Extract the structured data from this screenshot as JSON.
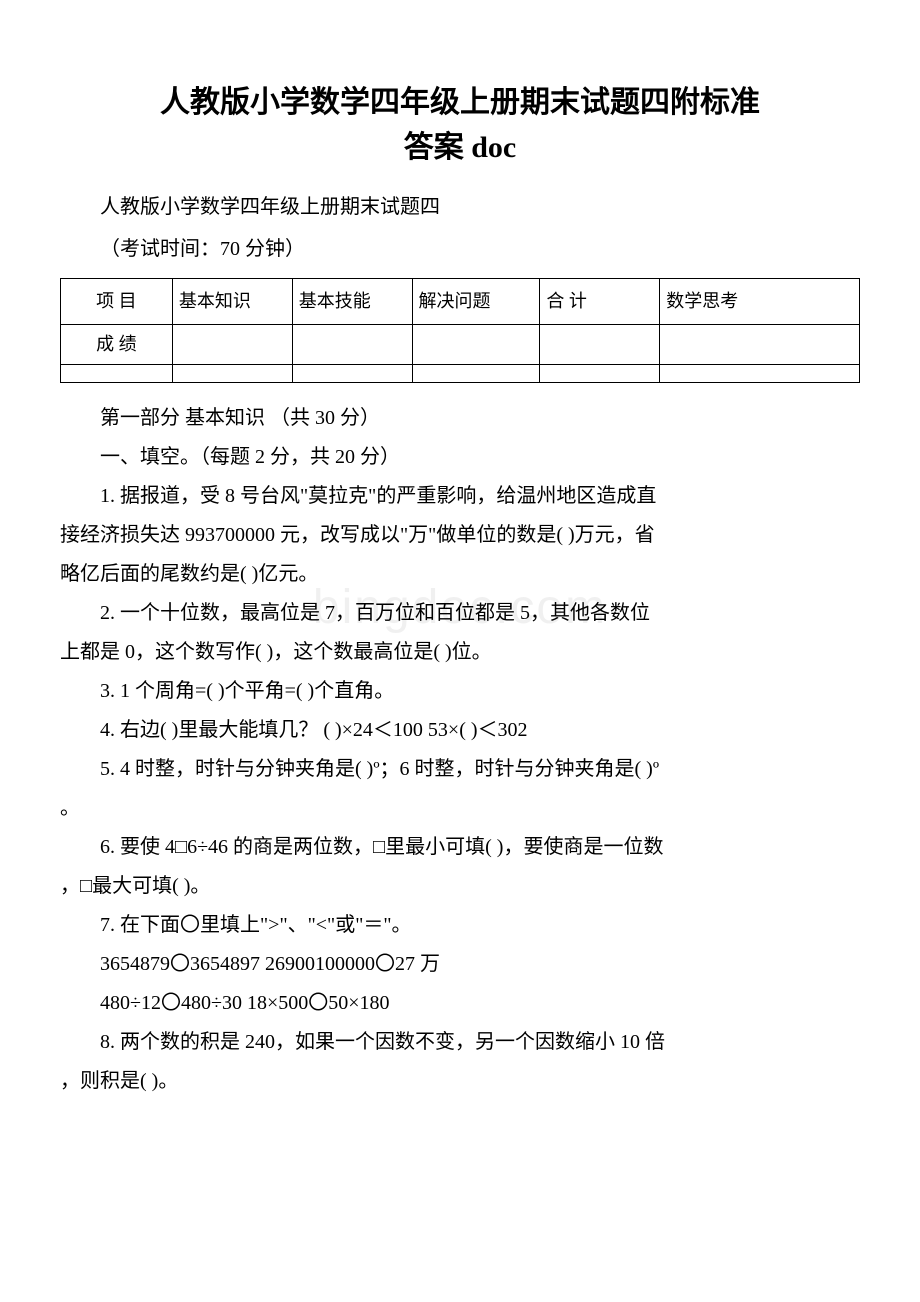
{
  "title_line1": "人教版小学数学四年级上册期末试题四附标准",
  "title_line2": "答案 doc",
  "subtitle": "人教版小学数学四年级上册期末试题四",
  "exam_time": "（考试时间：70 分钟）",
  "watermark": "bingdoc.com",
  "table": {
    "headers": [
      "项 目",
      "基本知识",
      "基本技能",
      "解决问题",
      "合 计",
      "数学思考"
    ],
    "row2_label": "成 绩",
    "col_widths": [
      "14%",
      "15%",
      "15%",
      "16%",
      "15%",
      "25%"
    ]
  },
  "section1_heading": "第一部分 基本知识 （共 30 分）",
  "section1_sub": "一、填空。（每题 2 分，共 20 分）",
  "q1a": "1. 据报道，受 8 号台风\"莫拉克\"的严重影响，给温州地区造成直",
  "q1b": "接经济损失达 993700000 元，改写成以\"万\"做单位的数是( )万元，省",
  "q1c": "略亿后面的尾数约是( )亿元。",
  "q2a": "2. 一个十位数，最高位是 7，百万位和百位都是 5，其他各数位",
  "q2b": "上都是 0，这个数写作( )，这个数最高位是( )位。",
  "q3": "3. 1 个周角=( )个平角=( )个直角。",
  "q4": "4. 右边( )里最大能填几？ ( )×24＜100 53×( )＜302",
  "q5a": "5. 4 时整，时针与分钟夹角是( )º；6 时整，时针与分钟夹角是( )º",
  "q5b": "。",
  "q6a": "6. 要使 4□6÷46 的商是两位数，□里最小可填( )，要使商是一位数",
  "q6b": "，□最大可填( )。",
  "q7a": "7. 在下面〇里填上\">\"、\"<\"或\"＝\"。",
  "q7b": " 3654879〇3654897   26900100000〇27 万",
  "q7c": " 480÷12〇480÷30  18×500〇50×180",
  "q8a": "8. 两个数的积是 240，如果一个因数不变，另一个因数缩小 10 倍",
  "q8b": "，则积是( )。"
}
